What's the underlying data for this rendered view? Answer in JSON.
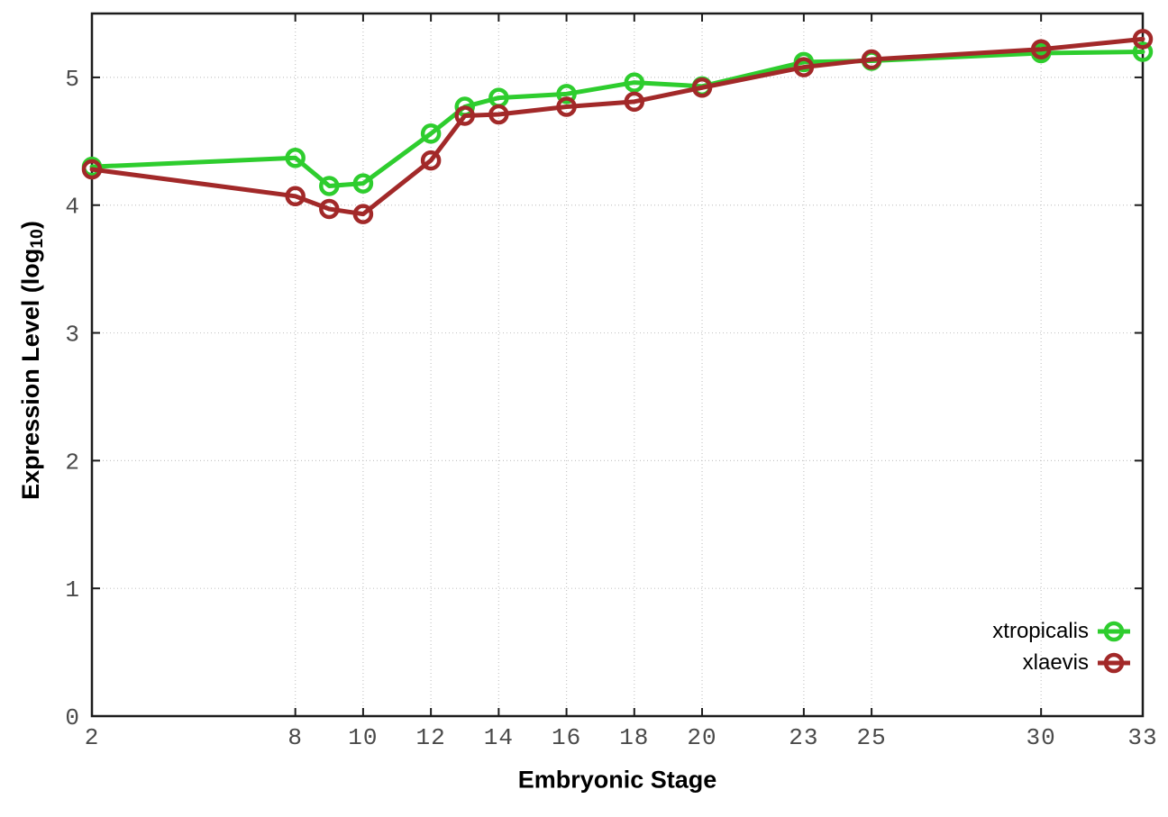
{
  "figure": {
    "background": "#ffffff",
    "border_color": "#1c1c1c",
    "grid_color": "#c6c6c6",
    "tick_label_color": "#4a4a4a"
  },
  "chart_data": {
    "type": "line",
    "title": "",
    "xlabel": "Embryonic Stage",
    "ylabel": "Expression Level (log10)",
    "ylabel_parts": {
      "main": "Expression Level (log",
      "sub": "10",
      "end": ")"
    },
    "xlim": [
      2,
      33
    ],
    "ylim": [
      0,
      5.5
    ],
    "x_ticks": [
      2,
      8,
      10,
      12,
      14,
      16,
      18,
      20,
      23,
      25,
      30,
      33
    ],
    "y_ticks": [
      0,
      1,
      2,
      3,
      4,
      5
    ],
    "grid": true,
    "legend_position": "bottom-right",
    "marker": "open-circle",
    "x": [
      2,
      8,
      9,
      10,
      12,
      13,
      14,
      16,
      18,
      20,
      23,
      25,
      30,
      33
    ],
    "series": [
      {
        "name": "xtropicalis",
        "color": "#2ecd2e",
        "values": [
          4.3,
          4.37,
          4.15,
          4.17,
          4.56,
          4.77,
          4.84,
          4.87,
          4.96,
          4.93,
          5.12,
          5.13,
          5.19,
          5.2
        ]
      },
      {
        "name": "xlaevis",
        "color": "#a22929",
        "values": [
          4.28,
          4.07,
          3.97,
          3.93,
          4.35,
          4.7,
          4.71,
          4.77,
          4.81,
          4.92,
          5.08,
          5.14,
          5.22,
          5.3
        ]
      }
    ]
  }
}
